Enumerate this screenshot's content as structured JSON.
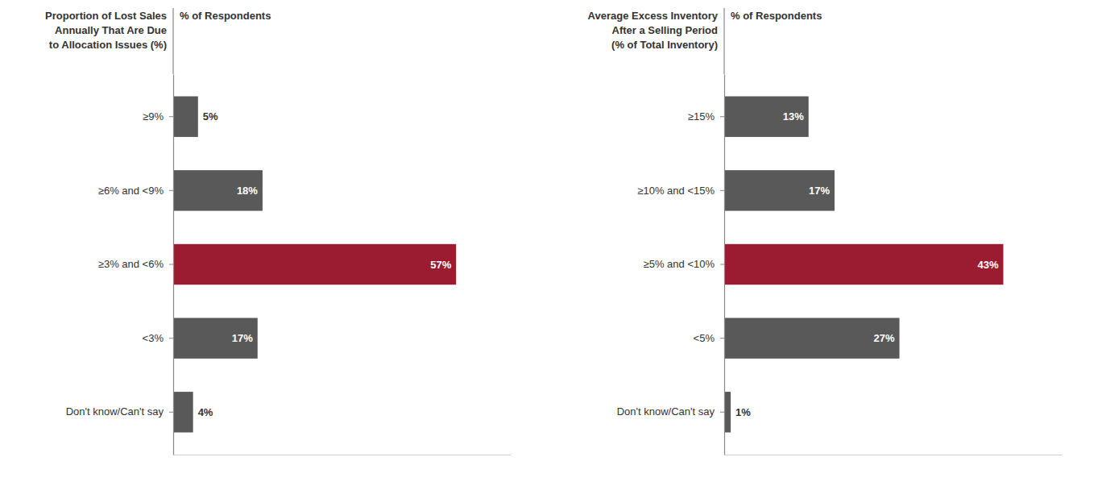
{
  "chart_data": [
    {
      "type": "bar",
      "orientation": "horizontal",
      "title": "Proportion of Lost Sales\nAnnually That Are Due\nto Allocation Issues (%)",
      "xlabel": "% of Respondents",
      "categories": [
        "≥9%",
        "≥6% and <9%",
        "≥3% and <6%",
        "<3%",
        "Don't know/Can't say"
      ],
      "values": [
        5,
        18,
        57,
        17,
        4
      ],
      "value_labels": [
        "5%",
        "18%",
        "57%",
        "17%",
        "4%"
      ],
      "colors": [
        "#595959",
        "#595959",
        "#9B1B30",
        "#595959",
        "#595959"
      ],
      "xlim": [
        0,
        68
      ],
      "data_labels": true,
      "tick_labels": "y",
      "grid": false
    },
    {
      "type": "bar",
      "orientation": "horizontal",
      "title": "Average Excess Inventory\nAfter a Selling Period\n(% of Total Inventory)",
      "xlabel": "% of Respondents",
      "categories": [
        "≥15%",
        "≥10% and <15%",
        "≥5% and <10%",
        "<5%",
        "Don't know/Can't say"
      ],
      "values": [
        13,
        17,
        43,
        27,
        1
      ],
      "value_labels": [
        "13%",
        "17%",
        "43%",
        "27%",
        "1%"
      ],
      "colors": [
        "#595959",
        "#595959",
        "#9B1B30",
        "#595959",
        "#595959"
      ],
      "xlim": [
        0,
        52
      ],
      "data_labels": true,
      "tick_labels": "y",
      "grid": false
    }
  ]
}
